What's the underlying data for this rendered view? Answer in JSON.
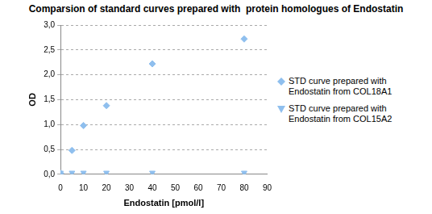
{
  "chart_data": {
    "type": "scatter",
    "title": "Comparsion of standard curves prepared with  protein homologues of Endostatin",
    "x_label": "Endostatin [pmol/l]",
    "y_label": "OD",
    "x": [
      0,
      5,
      10,
      20,
      40,
      80
    ],
    "series": [
      {
        "name": "STD curve prepared with Endostatin from COL18A1",
        "color": "#8fbfee",
        "marker": "diamond",
        "values": [
          0.02,
          0.48,
          0.98,
          1.38,
          2.22,
          2.72
        ]
      },
      {
        "name": "STD curve prepared with Endostatin from COL15A2",
        "color": "#8fbfee",
        "marker": "triangle_down",
        "values": [
          0.03,
          0.03,
          0.03,
          0.03,
          0.03,
          0.03
        ]
      }
    ],
    "xlim": [
      0,
      90
    ],
    "xticks": [
      0,
      10,
      20,
      30,
      40,
      50,
      60,
      70,
      80,
      90
    ],
    "ylim": [
      0,
      3
    ],
    "yticks": [
      {
        "value": 0,
        "label": "0,0"
      },
      {
        "value": 0.5,
        "label": "0,5"
      },
      {
        "value": 1,
        "label": "1,0"
      },
      {
        "value": 1.5,
        "label": "1,5"
      },
      {
        "value": 2,
        "label": "2,0"
      },
      {
        "value": 2.5,
        "label": "2,5"
      },
      {
        "value": 3,
        "label": "3,0"
      }
    ],
    "grid": true,
    "legend": "right"
  }
}
